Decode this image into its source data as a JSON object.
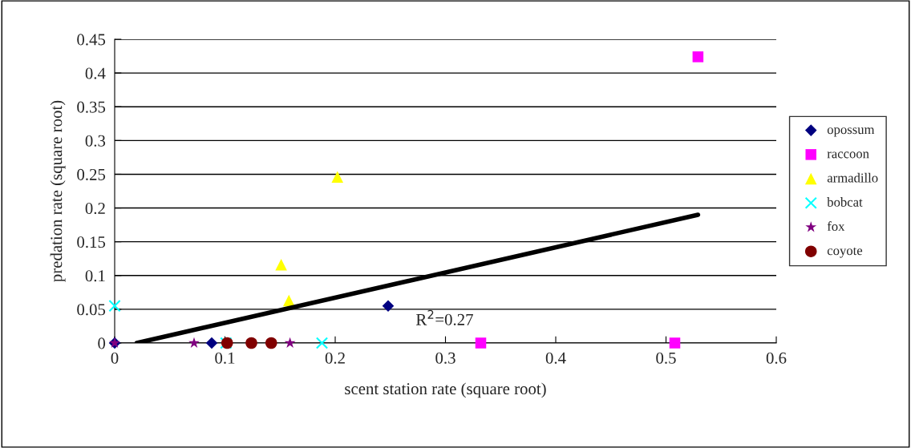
{
  "chart_data": {
    "type": "scatter",
    "xlabel": "scent station rate (square root)",
    "ylabel": "predation rate (square root)",
    "series": [
      {
        "name": "opossum",
        "color": "#000080",
        "marker": "diamond",
        "x": [
          0,
          0.088,
          0.248
        ],
        "values": [
          0,
          0,
          0.055
        ]
      },
      {
        "name": "raccoon",
        "color": "#ff00ff",
        "marker": "square",
        "x": [
          0.332,
          0.508,
          0.529
        ],
        "values": [
          0,
          0,
          0.424
        ]
      },
      {
        "name": "armadillo",
        "color": "#ffff00",
        "marker": "triangle",
        "x": [
          0.151,
          0.158,
          0.202
        ],
        "values": [
          0.116,
          0.063,
          0.246
        ]
      },
      {
        "name": "bobcat",
        "color": "#00ffff",
        "marker": "cross",
        "x": [
          0,
          0.101,
          0.188
        ],
        "values": [
          0.055,
          0,
          0
        ]
      },
      {
        "name": "fox",
        "color": "#800080",
        "marker": "star",
        "x": [
          0,
          0.072,
          0.159
        ],
        "values": [
          0,
          0,
          0
        ]
      },
      {
        "name": "coyote",
        "color": "#800000",
        "marker": "circle",
        "x": [
          0.102,
          0.124,
          0.142
        ],
        "values": [
          0,
          0,
          0
        ]
      },
      {
        "type": "line",
        "color": "#000000",
        "marker": "none",
        "x": [
          0.02,
          0.529
        ],
        "values": [
          0,
          0.19
        ]
      }
    ],
    "annotations": [
      "R$^{2}$=0.27"
    ],
    "xlim": [
      0,
      0.6
    ],
    "xticks": [
      0,
      0.1,
      0.2,
      0.3,
      0.4,
      0.5,
      0.6
    ],
    "ylim": [
      0,
      0.45
    ],
    "yticks": [
      0,
      0.05,
      0.1,
      0.15,
      0.2,
      0.25,
      0.3,
      0.35,
      0.4,
      0.45
    ],
    "grid": "y",
    "legend": "right"
  }
}
